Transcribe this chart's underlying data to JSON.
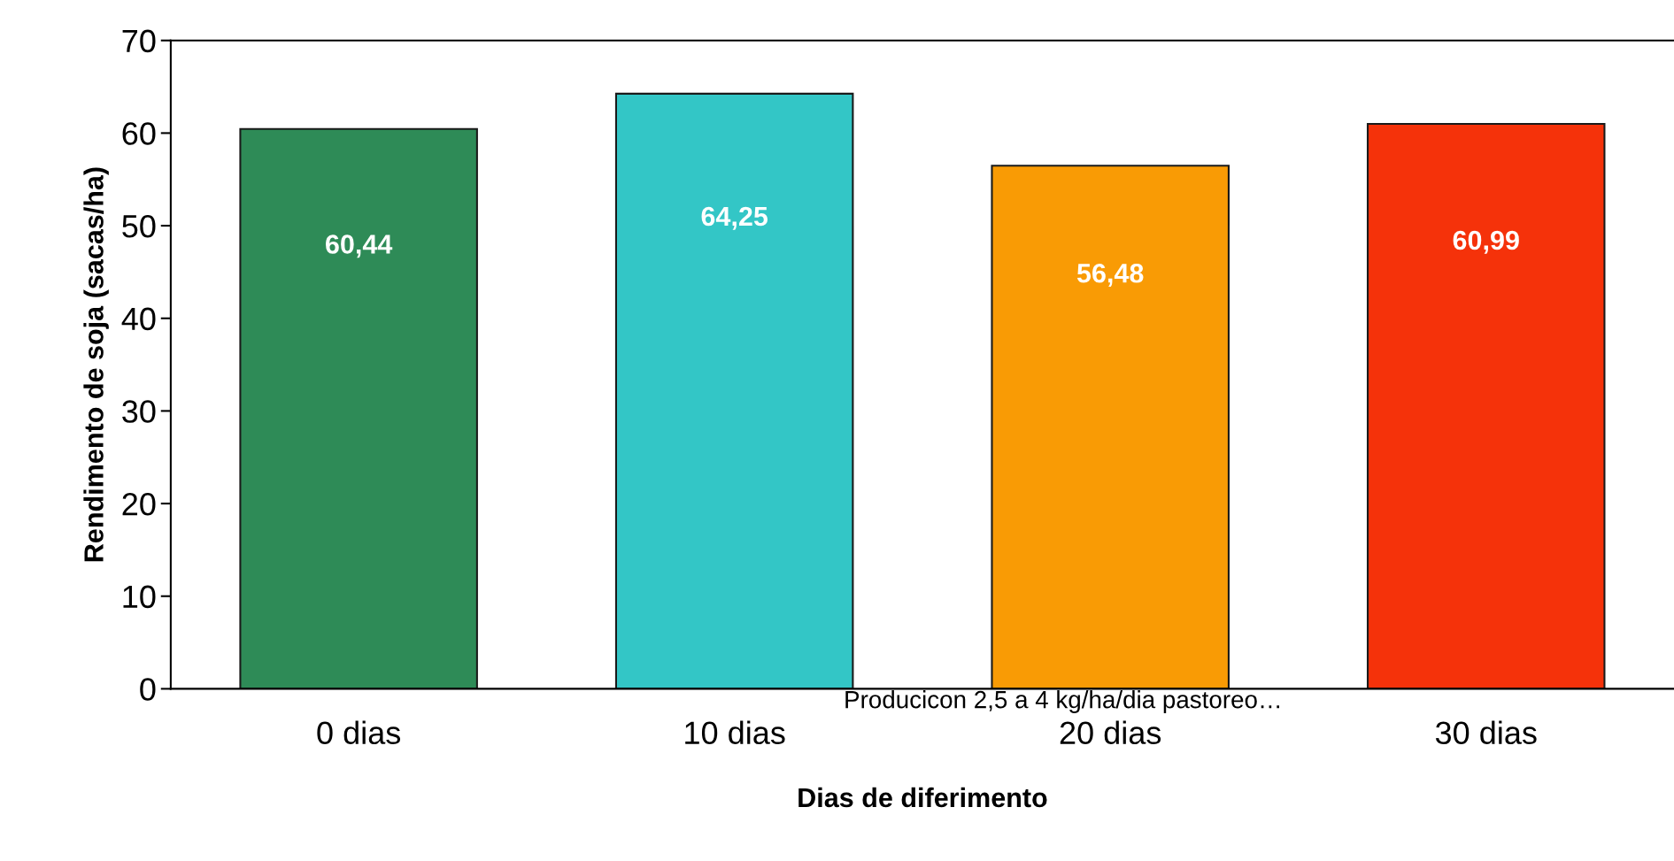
{
  "chart_data": {
    "type": "bar",
    "xlabel": "Dias de diferimento",
    "ylabel": "Rendimento de soja (sacas/ha)",
    "categories": [
      "0 dias",
      "10 dias",
      "20 dias",
      "30 dias"
    ],
    "values": [
      60.44,
      64.25,
      56.48,
      60.99
    ],
    "colors": [
      "#2e8b57",
      "#33c6c6",
      "#f99b05",
      "#f5320a"
    ],
    "value_labels": [
      "60,44",
      "64,25",
      "56,48",
      "60,99"
    ],
    "ylim": [
      0,
      70
    ],
    "yticks": [
      0,
      10,
      20,
      30,
      40,
      50,
      60,
      70
    ],
    "grid": false,
    "annotations": [
      "Producicon 2,5 a 4 kg/ha/dia pastoreo…"
    ]
  }
}
